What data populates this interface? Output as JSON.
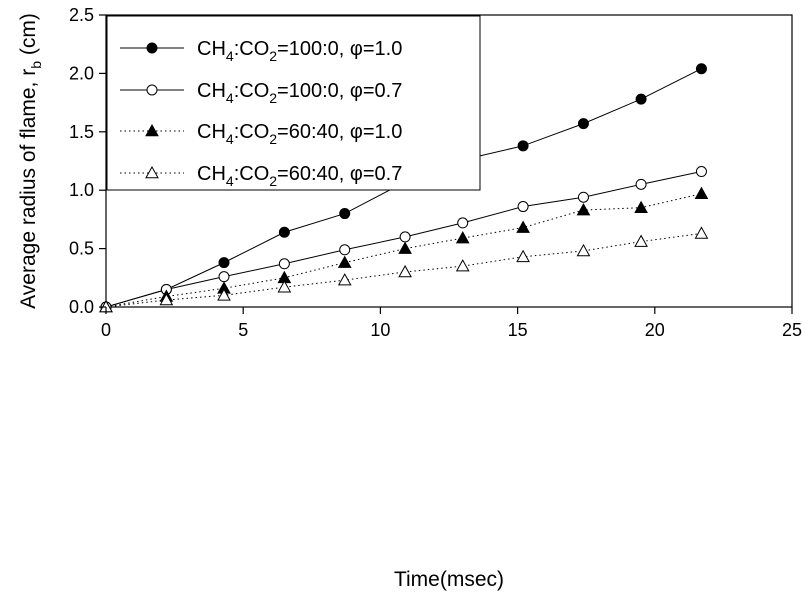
{
  "chart_data": {
    "type": "line",
    "xlabel": "Time(msec)",
    "ylabel_main": "Average radius of flame, r",
    "ylabel_sub": "b",
    "ylabel_unit": " (cm)",
    "xlim": [
      0,
      25
    ],
    "ylim": [
      0,
      2.5
    ],
    "xticks": [
      0,
      5,
      10,
      15,
      20,
      25
    ],
    "yticks": [
      0.0,
      0.5,
      1.0,
      1.5,
      2.0,
      2.5
    ],
    "xtick_labels": [
      "0",
      "5",
      "10",
      "15",
      "20",
      "25"
    ],
    "ytick_labels": [
      "0.0",
      "0.5",
      "1.0",
      "1.5",
      "2.0",
      "2.5"
    ],
    "grid": false,
    "legend_position": "top-left",
    "series": [
      {
        "name": "CH4:CO2=100:0, φ=1.0",
        "label_parts": [
          "CH",
          "4",
          ":CO",
          "2",
          "=100:0, ",
          "φ",
          "=1.0"
        ],
        "marker": "filled-circle",
        "line": "solid",
        "x": [
          0,
          2.2,
          4.3,
          6.5,
          8.7,
          10.9,
          13.0,
          15.2,
          17.4,
          19.5,
          21.7
        ],
        "y": [
          0,
          0.15,
          0.38,
          0.64,
          0.8,
          1.07,
          1.26,
          1.38,
          1.57,
          1.78,
          2.04
        ]
      },
      {
        "name": "CH4:CO2=100:0, φ=0.7",
        "label_parts": [
          "CH",
          "4",
          ":CO",
          "2",
          "=100:0, ",
          "φ",
          "=0.7"
        ],
        "marker": "open-circle",
        "line": "solid",
        "x": [
          0,
          2.2,
          4.3,
          6.5,
          8.7,
          10.9,
          13.0,
          15.2,
          17.4,
          19.5,
          21.7
        ],
        "y": [
          0,
          0.15,
          0.26,
          0.37,
          0.49,
          0.6,
          0.72,
          0.86,
          0.94,
          1.05,
          1.16
        ]
      },
      {
        "name": "CH4:CO2=60:40, φ=1.0",
        "label_parts": [
          "CH",
          "4",
          ":CO",
          "2",
          "=60:40, ",
          "φ",
          "=1.0"
        ],
        "marker": "filled-triangle",
        "line": "dotted",
        "x": [
          0,
          2.2,
          4.3,
          6.5,
          8.7,
          10.9,
          13.0,
          15.2,
          17.4,
          19.5,
          21.7
        ],
        "y": [
          0,
          0.09,
          0.16,
          0.25,
          0.38,
          0.5,
          0.59,
          0.68,
          0.83,
          0.85,
          0.97
        ]
      },
      {
        "name": "CH4:CO2=60:40, φ=0.7",
        "label_parts": [
          "CH",
          "4",
          ":CO",
          "2",
          "=60:40, ",
          "φ",
          "=0.7"
        ],
        "marker": "open-triangle",
        "line": "dotted",
        "x": [
          0,
          2.2,
          4.3,
          6.5,
          8.7,
          10.9,
          13.0,
          15.2,
          17.4,
          19.5,
          21.7
        ],
        "y": [
          0,
          0.06,
          0.1,
          0.17,
          0.23,
          0.3,
          0.35,
          0.43,
          0.48,
          0.56,
          0.63
        ]
      }
    ]
  }
}
